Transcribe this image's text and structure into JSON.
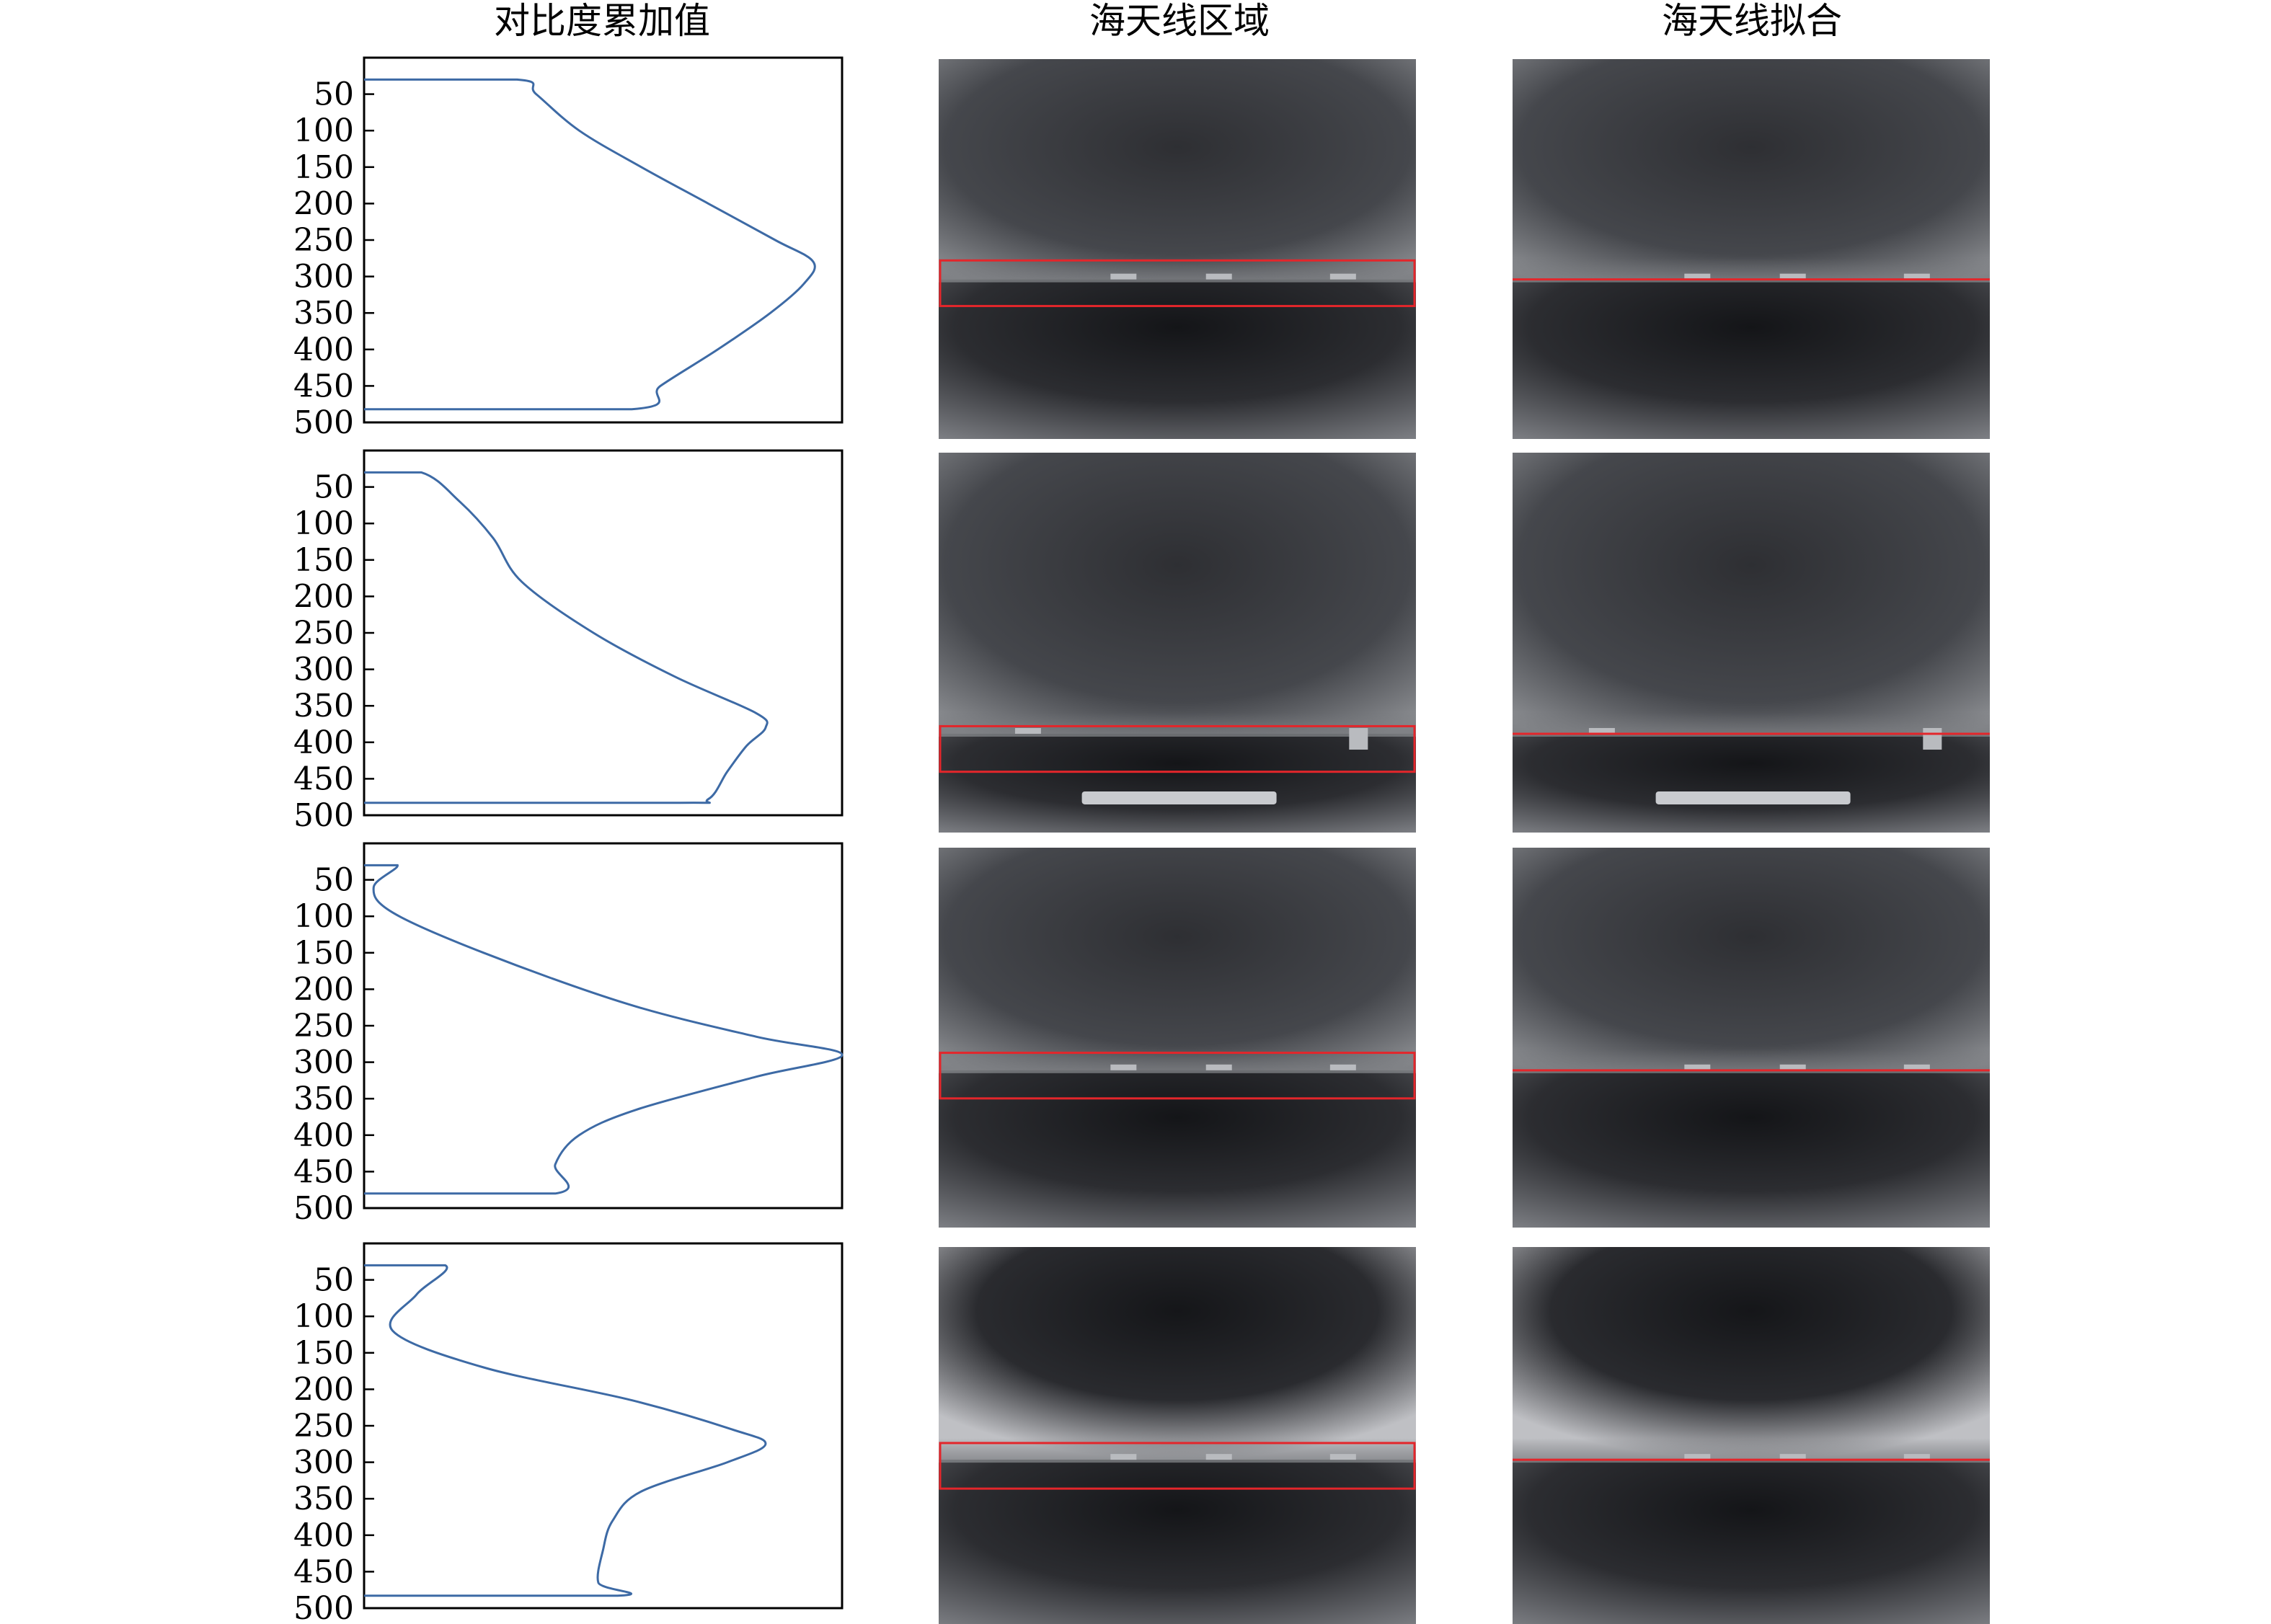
{
  "column_titles": [
    "对比度累加值",
    "海天线区域",
    "海天线拟合"
  ],
  "colors": {
    "curve": "#3d6aa5",
    "red_box": "#e3262b",
    "axes": "#000000"
  },
  "chart_data": [
    {
      "type": "line",
      "row": 1,
      "title": "对比度累加值",
      "orientation": "vertical-profile",
      "y_ticks": [
        50,
        100,
        150,
        200,
        250,
        300,
        350,
        400,
        450,
        500
      ],
      "ylim": [
        500,
        0
      ],
      "xlim": [
        0,
        1
      ],
      "grid": false,
      "points": [
        [
          0.0,
          30
        ],
        [
          0.32,
          30
        ],
        [
          0.36,
          50
        ],
        [
          0.45,
          100
        ],
        [
          0.58,
          150
        ],
        [
          0.72,
          200
        ],
        [
          0.86,
          250
        ],
        [
          0.94,
          280
        ],
        [
          0.92,
          310
        ],
        [
          0.85,
          350
        ],
        [
          0.74,
          400
        ],
        [
          0.62,
          450
        ],
        [
          0.56,
          482
        ],
        [
          0.0,
          482
        ]
      ],
      "horizon_row": 290,
      "region_rows": [
        265,
        325
      ]
    },
    {
      "type": "line",
      "row": 2,
      "title": "对比度累加值",
      "orientation": "vertical-profile",
      "y_ticks": [
        50,
        100,
        150,
        200,
        250,
        300,
        350,
        400,
        450,
        500
      ],
      "ylim": [
        500,
        0
      ],
      "xlim": [
        0,
        1
      ],
      "grid": false,
      "points": [
        [
          0.0,
          30
        ],
        [
          0.12,
          30
        ],
        [
          0.2,
          70
        ],
        [
          0.27,
          120
        ],
        [
          0.33,
          180
        ],
        [
          0.48,
          250
        ],
        [
          0.65,
          310
        ],
        [
          0.82,
          360
        ],
        [
          0.84,
          380
        ],
        [
          0.8,
          405
        ],
        [
          0.76,
          440
        ],
        [
          0.72,
          478
        ],
        [
          0.65,
          483
        ],
        [
          0.0,
          483
        ]
      ],
      "horizon_row": 370,
      "region_rows": [
        360,
        420
      ]
    },
    {
      "type": "line",
      "row": 3,
      "title": "对比度累加值",
      "orientation": "vertical-profile",
      "y_ticks": [
        50,
        100,
        150,
        200,
        250,
        300,
        350,
        400,
        450,
        500
      ],
      "ylim": [
        500,
        0
      ],
      "xlim": [
        0,
        1
      ],
      "grid": false,
      "points": [
        [
          0.0,
          30
        ],
        [
          0.07,
          30
        ],
        [
          0.02,
          60
        ],
        [
          0.06,
          95
        ],
        [
          0.25,
          150
        ],
        [
          0.55,
          220
        ],
        [
          0.82,
          265
        ],
        [
          1.0,
          290
        ],
        [
          0.82,
          320
        ],
        [
          0.57,
          365
        ],
        [
          0.45,
          400
        ],
        [
          0.4,
          440
        ],
        [
          0.4,
          480
        ],
        [
          0.0,
          480
        ]
      ],
      "horizon_row": 293,
      "region_rows": [
        270,
        330
      ]
    },
    {
      "type": "line",
      "row": 4,
      "title": "对比度累加值",
      "orientation": "vertical-profile",
      "y_ticks": [
        50,
        100,
        150,
        200,
        250,
        300,
        350,
        400,
        450,
        500
      ],
      "ylim": [
        500,
        0
      ],
      "xlim": [
        0,
        1
      ],
      "grid": false,
      "points": [
        [
          0.0,
          30
        ],
        [
          0.17,
          30
        ],
        [
          0.11,
          70
        ],
        [
          0.06,
          120
        ],
        [
          0.25,
          170
        ],
        [
          0.56,
          215
        ],
        [
          0.77,
          255
        ],
        [
          0.84,
          275
        ],
        [
          0.76,
          300
        ],
        [
          0.58,
          340
        ],
        [
          0.52,
          380
        ],
        [
          0.5,
          420
        ],
        [
          0.49,
          465
        ],
        [
          0.53,
          483
        ],
        [
          0.0,
          483
        ]
      ],
      "horizon_row": 280,
      "region_rows": [
        258,
        318
      ]
    }
  ]
}
